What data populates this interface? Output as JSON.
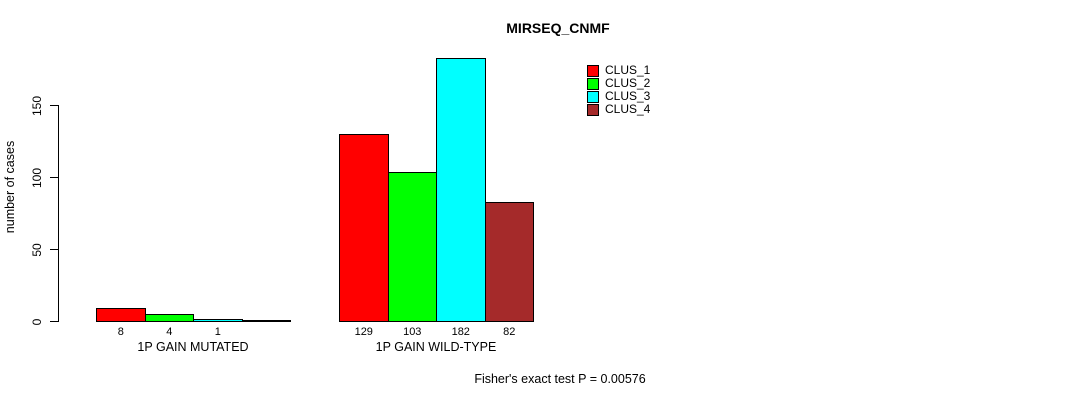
{
  "title": "MIRSEQ_CNMF",
  "caption": "Fisher's exact test P = 0.00576",
  "y_axis": {
    "label": "number of cases",
    "ticks": [
      "0",
      "50",
      "100",
      "150"
    ]
  },
  "legend": {
    "items": [
      {
        "label": "CLUS_1",
        "color": "#ff0000"
      },
      {
        "label": "CLUS_2",
        "color": "#00ff00"
      },
      {
        "label": "CLUS_3",
        "color": "#00ffff"
      },
      {
        "label": "CLUS_4",
        "color": "#a52a2a"
      }
    ]
  },
  "chart_data": {
    "type": "bar",
    "title": "MIRSEQ_CNMF",
    "xlabel": "",
    "ylabel": "number of cases",
    "ylim": [
      0,
      150
    ],
    "yticks": [
      0,
      50,
      100,
      150
    ],
    "grid": false,
    "legend_position": "top-right",
    "categories": [
      "1P GAIN MUTATED",
      "1P GAIN WILD-TYPE"
    ],
    "series": [
      {
        "name": "CLUS_1",
        "color": "#ff0000",
        "values": [
          8,
          129
        ]
      },
      {
        "name": "CLUS_2",
        "color": "#00ff00",
        "values": [
          4,
          103
        ]
      },
      {
        "name": "CLUS_3",
        "color": "#00ffff",
        "values": [
          1,
          182
        ]
      },
      {
        "name": "CLUS_4",
        "color": "#a52a2a",
        "values": [
          0,
          82
        ]
      }
    ],
    "bar_labels": [
      [
        "8",
        "4",
        "1",
        ""
      ],
      [
        "129",
        "103",
        "182",
        "82"
      ]
    ],
    "annotation": "Fisher's exact test P = 0.00576"
  }
}
